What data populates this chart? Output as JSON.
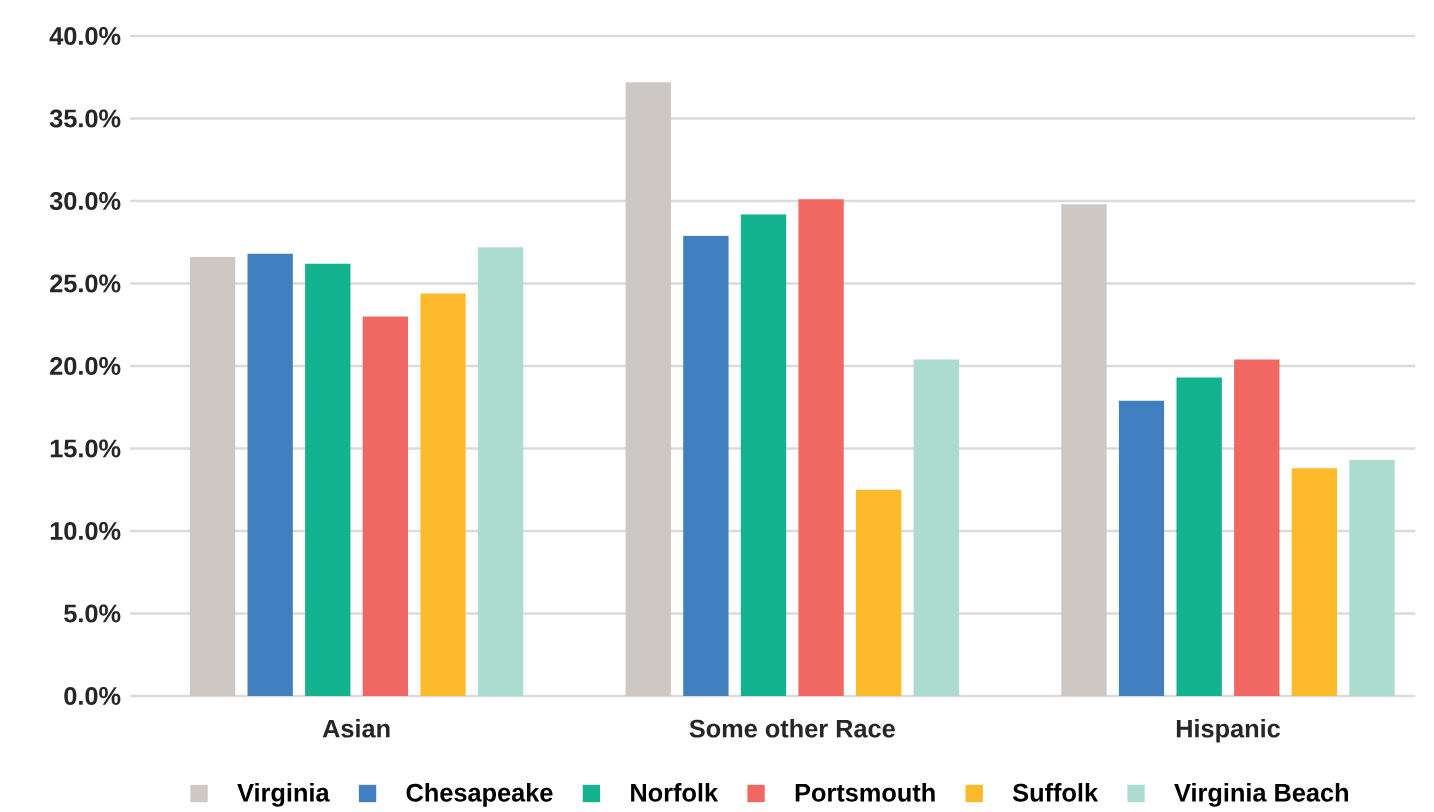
{
  "chart_data": {
    "type": "bar",
    "categories": [
      "Asian",
      "Some other Race",
      "Hispanic"
    ],
    "series": [
      {
        "name": "Virginia",
        "color": "#cdc8c4",
        "values": [
          26.6,
          37.2,
          29.8
        ]
      },
      {
        "name": "Chesapeake",
        "color": "#427fc0",
        "values": [
          26.8,
          27.9,
          17.9
        ]
      },
      {
        "name": "Norfolk",
        "color": "#13b38f",
        "values": [
          26.2,
          29.2,
          19.3
        ]
      },
      {
        "name": "Portsmouth",
        "color": "#f16762",
        "values": [
          23.0,
          30.1,
          20.4
        ]
      },
      {
        "name": "Suffolk",
        "color": "#fdba2a",
        "values": [
          24.4,
          12.5,
          13.8
        ]
      },
      {
        "name": "Virginia Beach",
        "color": "#acdbcf",
        "values": [
          27.2,
          20.4,
          14.3
        ]
      }
    ],
    "ylim": [
      0,
      40
    ],
    "yticks": [
      {
        "value": 0,
        "label": "0.0%"
      },
      {
        "value": 5,
        "label": "5.0%"
      },
      {
        "value": 10,
        "label": "10.0%"
      },
      {
        "value": 15,
        "label": "15.0%"
      },
      {
        "value": 20,
        "label": "20.0%"
      },
      {
        "value": 25,
        "label": "25.0%"
      },
      {
        "value": 30,
        "label": "30.0%"
      },
      {
        "value": 35,
        "label": "35.0%"
      },
      {
        "value": 40,
        "label": "40.0%"
      }
    ],
    "grid": "y",
    "legend": "bottom"
  }
}
